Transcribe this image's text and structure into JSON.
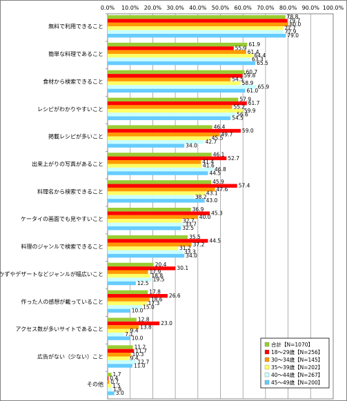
{
  "chart_data": {
    "type": "bar",
    "orientation": "horizontal",
    "xlim": [
      0,
      100
    ],
    "x_ticks": [
      "0.0%",
      "10.0%",
      "20.0%",
      "30.0%",
      "40.0%",
      "50.0%",
      "60.0%",
      "70.0%",
      "80.0%",
      "90.0%",
      "100.0%"
    ],
    "grid": true,
    "legend_position": "bottom-right",
    "categories": [
      "無料で利用できること",
      "簡単な料理であること",
      "食材から検索できること",
      "レシピがわかりやすいこと",
      "掲載レシピが多いこと",
      "出来上がりの写真があること",
      "料理名から検索できること",
      "ケータイの画面でも見やすいこと",
      "料理のジャンルで検索できること",
      "おかずやデザートなどジャンルが幅広いこと",
      "作った人の感想が載っていること",
      "アクセス数が多いサイトであること",
      "広告がない（少ない）こと",
      "その他"
    ],
    "series": [
      {
        "name": "合計【N=1070】",
        "color": "#99cc33",
        "values": [
          78.8,
          61.9,
          60.7,
          57.9,
          46.4,
          46.1,
          45.9,
          36.9,
          35.5,
          20.4,
          17.8,
          12.8,
          11.2,
          1.7
        ]
      },
      {
        "name": "18～29歳【N=256】",
        "color": "#ff0000",
        "values": [
          79.7,
          55.9,
          59.8,
          61.7,
          59.0,
          52.7,
          57.4,
          45.3,
          44.5,
          30.1,
          26.6,
          23.0,
          11.7,
          0.4
        ]
      },
      {
        "name": "30～34歳【N=145】",
        "color": "#ff9900",
        "values": [
          80.0,
          61.4,
          54.5,
          55.2,
          49.7,
          41.4,
          47.6,
          40.0,
          37.2,
          17.9,
          18.6,
          13.8,
          10.3,
          0.7
        ]
      },
      {
        "name": "35～39歳【N=202】",
        "color": "#ffff66",
        "values": [
          77.7,
          64.4,
          58.9,
          59.9,
          45.5,
          41.6,
          43.1,
          32.7,
          31.2,
          18.8,
          17.3,
          9.4,
          9.4,
          1.5
        ]
      },
      {
        "name": "40～44歳【N=267】",
        "color": "#ccffff",
        "values": [
          77.9,
          63.3,
          65.9,
          56.6,
          42.7,
          46.8,
          38.2,
          33.7,
          33.3,
          19.5,
          15.0,
          7.1,
          12.7,
          1.9
        ]
      },
      {
        "name": "45～49歳【N=200】",
        "color": "#66ccff",
        "values": [
          79.0,
          65.5,
          61.0,
          54.5,
          34.0,
          44.5,
          43.0,
          32.5,
          34.0,
          12.5,
          10.0,
          10.0,
          11.0,
          3.0
        ]
      }
    ]
  }
}
